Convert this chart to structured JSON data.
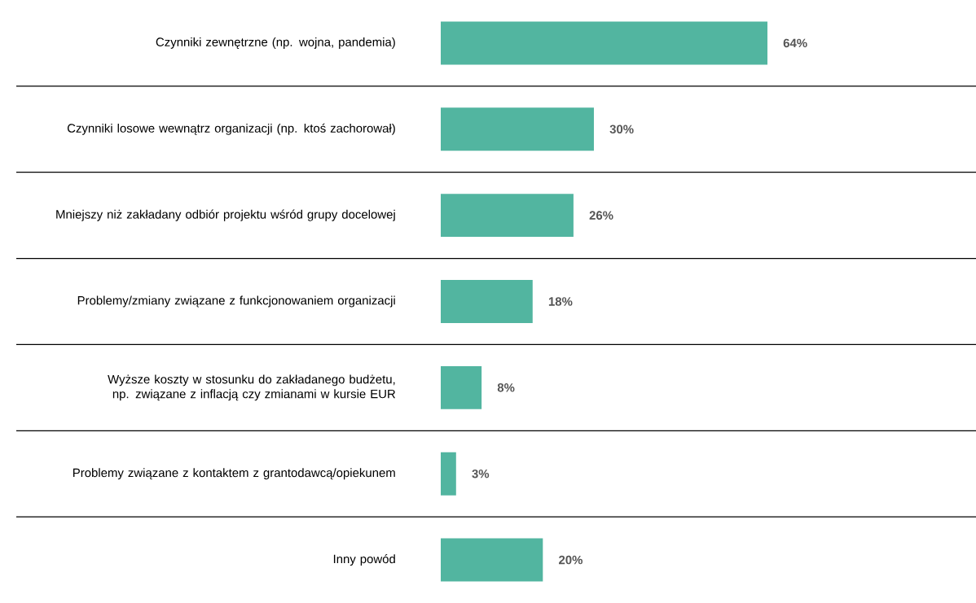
{
  "chart_data": {
    "type": "bar",
    "orientation": "horizontal",
    "categories": [
      "Czynniki zewnętrzne (np. wojna, pandemia)",
      "Czynniki losowe wewnątrz organizacji (np. ktoś zachorował)",
      "Mniejszy niż zakładany odbiór projektu wśród grupy docelowej",
      "Problemy/zmiany związane z funkcjonowaniem organizacji",
      "Wyższe koszty w stosunku do zakładanego budżetu, np. związane z inflacją czy zmianami w kursie EUR",
      "Problemy związane z kontaktem z grantodawcą/opiekunem",
      "Inny powód"
    ],
    "values": [
      64,
      30,
      26,
      18,
      8,
      3,
      20
    ],
    "value_labels": [
      "64%",
      "30%",
      "26%",
      "18%",
      "8%",
      "3%",
      "20%"
    ],
    "color": "#52b5a0",
    "grid": "y"
  }
}
